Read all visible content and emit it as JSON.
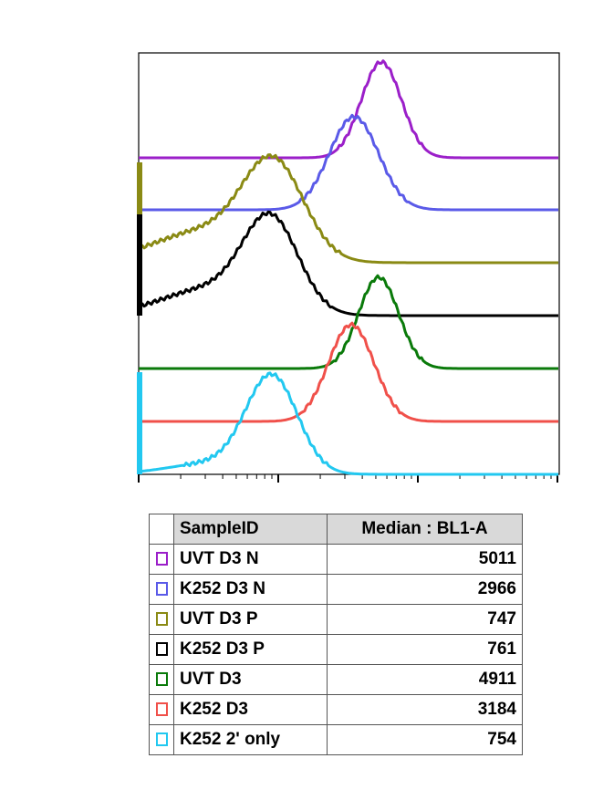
{
  "table": {
    "header": [
      "SampleID",
      "Median : BL1-A"
    ],
    "rows": [
      [
        "UVT D3 N",
        5011
      ],
      [
        "K252 D3 N",
        2966
      ],
      [
        "UVT D3 P",
        747
      ],
      [
        "K252 D3 P",
        761
      ],
      [
        "UVT D3",
        4911
      ],
      [
        "K252 D3",
        3184
      ],
      [
        "K252 2' only",
        754
      ]
    ],
    "colors": [
      "#9b1fc9",
      "#5a5ae8",
      "#8a8a14",
      "#000000",
      "#0a7a0a",
      "#f0504a",
      "#22c8f0"
    ]
  }
}
